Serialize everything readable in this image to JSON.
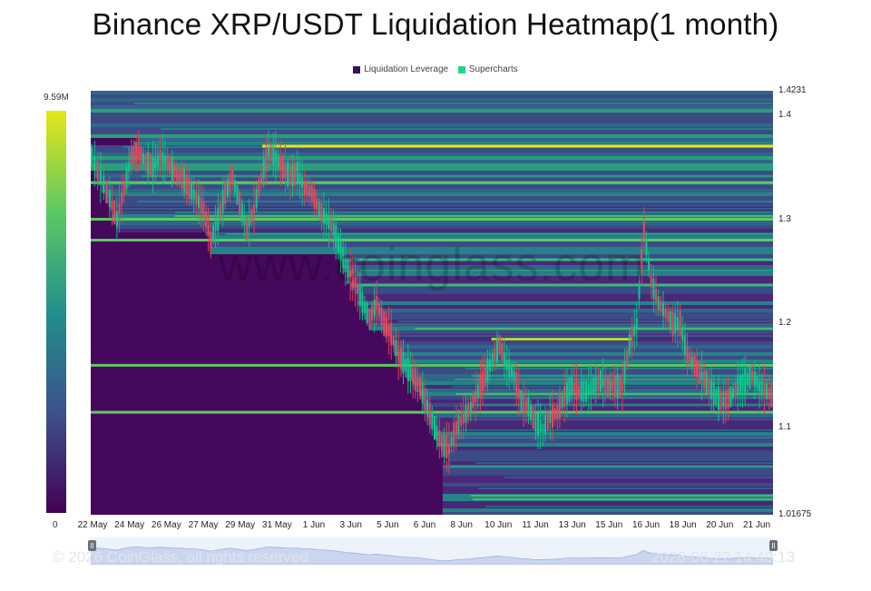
{
  "header": {
    "title": "Binance XRP/USDT Liquidation Heatmap(1 month)"
  },
  "legend": [
    {
      "label": "Liquidation Leverage",
      "color": "#3b0f5c"
    },
    {
      "label": "Supercharts",
      "color": "#22d48a"
    }
  ],
  "colorbar": {
    "max_label": "9.59M",
    "min_label": "0",
    "colors": [
      "#440154",
      "#3b528b",
      "#21908d",
      "#5dc963",
      "#e6e619"
    ]
  },
  "watermark": "www.coinglass.com",
  "footer": {
    "copyright": "© 2026 CoinGlass, all rights reserved",
    "timestamp": "2026-06-22 14:40:13"
  },
  "chart_data": {
    "type": "heatmap",
    "title": "Binance XRP/USDT Liquidation Heatmap(1 month)",
    "x_tick_labels": [
      "22 May",
      "24 May",
      "26 May",
      "27 May",
      "29 May",
      "31 May",
      "1 Jun",
      "3 Jun",
      "5 Jun",
      "6 Jun",
      "8 Jun",
      "10 Jun",
      "11 Jun",
      "13 Jun",
      "15 Jun",
      "16 Jun",
      "18 Jun",
      "20 Jun",
      "21 Jun"
    ],
    "y_tick_labels": [
      "1.4231",
      "1.4",
      "1.3",
      "1.2",
      "1.1",
      "1.01675"
    ],
    "ylim": [
      1.01675,
      1.4231
    ],
    "x_range_days": [
      0,
      31
    ],
    "y_axis_position": "right",
    "colorbar_range": [
      0,
      9.59
    ],
    "colorbar_unit": "M",
    "price_series": [
      [
        0,
        1.36
      ],
      [
        0.5,
        1.34
      ],
      [
        1,
        1.32
      ],
      [
        1.4,
        1.3
      ],
      [
        1.8,
        1.33
      ],
      [
        2.2,
        1.36
      ],
      [
        2.6,
        1.365
      ],
      [
        3,
        1.355
      ],
      [
        3.4,
        1.35
      ],
      [
        3.8,
        1.36
      ],
      [
        4.2,
        1.355
      ],
      [
        4.6,
        1.345
      ],
      [
        5,
        1.34
      ],
      [
        5.4,
        1.33
      ],
      [
        5.8,
        1.32
      ],
      [
        6.2,
        1.31
      ],
      [
        6.6,
        1.28
      ],
      [
        7,
        1.3
      ],
      [
        7.4,
        1.325
      ],
      [
        7.8,
        1.34
      ],
      [
        8.2,
        1.315
      ],
      [
        8.6,
        1.29
      ],
      [
        9,
        1.31
      ],
      [
        9.4,
        1.34
      ],
      [
        9.8,
        1.365
      ],
      [
        10.2,
        1.36
      ],
      [
        10.6,
        1.35
      ],
      [
        11,
        1.34
      ],
      [
        11.4,
        1.345
      ],
      [
        11.8,
        1.33
      ],
      [
        12.2,
        1.325
      ],
      [
        12.6,
        1.31
      ],
      [
        13,
        1.3
      ],
      [
        13.4,
        1.29
      ],
      [
        13.8,
        1.27
      ],
      [
        14.2,
        1.25
      ],
      [
        14.6,
        1.24
      ],
      [
        15,
        1.22
      ],
      [
        15.4,
        1.205
      ],
      [
        15.8,
        1.22
      ],
      [
        16.2,
        1.2
      ],
      [
        16.6,
        1.19
      ],
      [
        17,
        1.17
      ],
      [
        17.4,
        1.16
      ],
      [
        17.8,
        1.15
      ],
      [
        18.2,
        1.14
      ],
      [
        18.6,
        1.12
      ],
      [
        19,
        1.1
      ],
      [
        19.4,
        1.085
      ],
      [
        19.8,
        1.08
      ],
      [
        20.2,
        1.1
      ],
      [
        20.6,
        1.11
      ],
      [
        21,
        1.12
      ],
      [
        21.4,
        1.135
      ],
      [
        21.8,
        1.15
      ],
      [
        22.2,
        1.165
      ],
      [
        22.6,
        1.18
      ],
      [
        23,
        1.16
      ],
      [
        23.4,
        1.15
      ],
      [
        23.8,
        1.125
      ],
      [
        24.2,
        1.12
      ],
      [
        24.6,
        1.105
      ],
      [
        25,
        1.1
      ],
      [
        25.4,
        1.11
      ],
      [
        25.8,
        1.115
      ],
      [
        26.2,
        1.13
      ],
      [
        26.6,
        1.14
      ],
      [
        27,
        1.135
      ],
      [
        27.4,
        1.135
      ],
      [
        27.8,
        1.14
      ],
      [
        28.2,
        1.145
      ],
      [
        28.6,
        1.14
      ],
      [
        29,
        1.14
      ],
      [
        29.4,
        1.14
      ],
      [
        29.8,
        1.18
      ],
      [
        30.2,
        1.2
      ],
      [
        30.6,
        1.29
      ],
      [
        31,
        1.24
      ]
    ],
    "price_series_extended": [
      [
        31.4,
        1.22
      ],
      [
        31.8,
        1.21
      ],
      [
        32.2,
        1.2
      ],
      [
        32.6,
        1.2
      ],
      [
        33,
        1.17
      ],
      [
        33.4,
        1.16
      ],
      [
        33.8,
        1.15
      ],
      [
        34.2,
        1.14
      ],
      [
        34.6,
        1.13
      ],
      [
        35,
        1.125
      ],
      [
        35.4,
        1.13
      ],
      [
        35.8,
        1.14
      ],
      [
        36.2,
        1.145
      ],
      [
        36.6,
        1.15
      ],
      [
        37,
        1.14
      ],
      [
        37.4,
        1.135
      ],
      [
        37.8,
        1.13
      ]
    ],
    "notable_levels": [
      1.37,
      1.335,
      1.3,
      1.28,
      1.185,
      1.16,
      1.115
    ]
  }
}
